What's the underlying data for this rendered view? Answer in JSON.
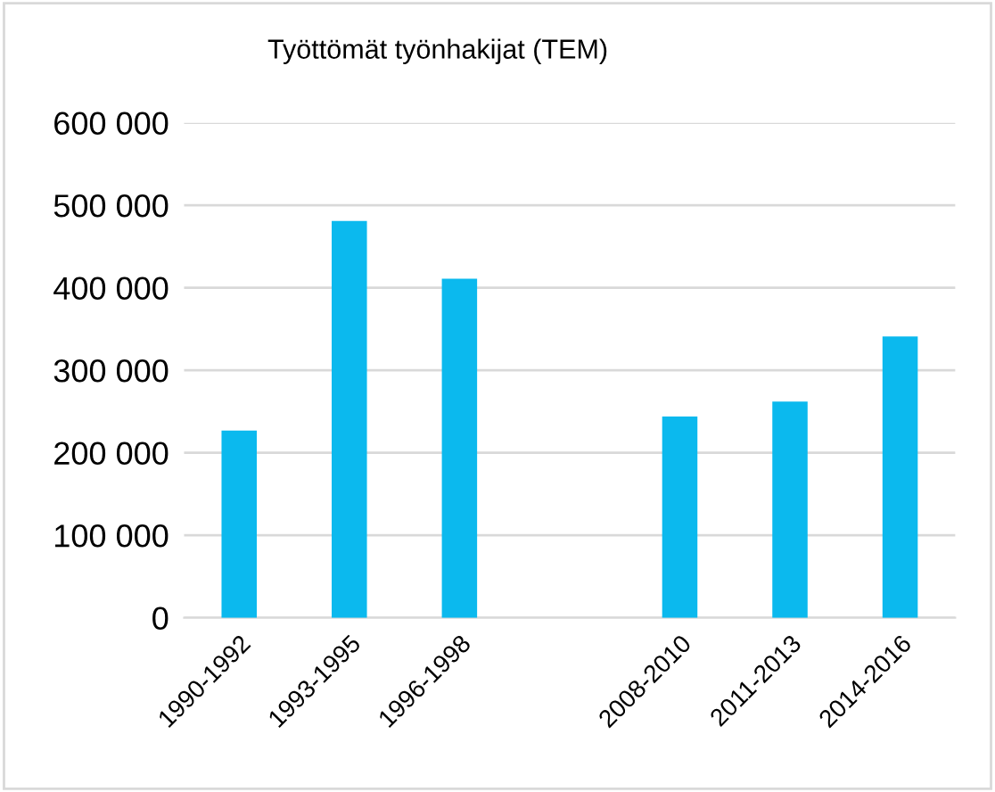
{
  "chart_data": {
    "type": "bar",
    "title": "Työttömät työnhakijat (TEM)",
    "categories": [
      "1990-1992",
      "1993-1995",
      "1996-1998",
      null,
      "2008-2010",
      "2011-2013",
      "2014-2016"
    ],
    "values": [
      227000,
      481000,
      411000,
      null,
      244000,
      262000,
      341000
    ],
    "color": "#0bb9ee",
    "ylim": [
      0,
      600000
    ],
    "yticks": [
      0,
      {
        "value": 100000,
        "label": "100 000"
      },
      {
        "value": 200000,
        "label": "200 000"
      },
      {
        "value": 300000,
        "label": "300 000"
      },
      {
        "value": 400000,
        "label": "400 000"
      },
      {
        "value": 500000,
        "label": "500 000"
      },
      {
        "value": 600000,
        "label": "600 000"
      }
    ],
    "grid": "y"
  }
}
